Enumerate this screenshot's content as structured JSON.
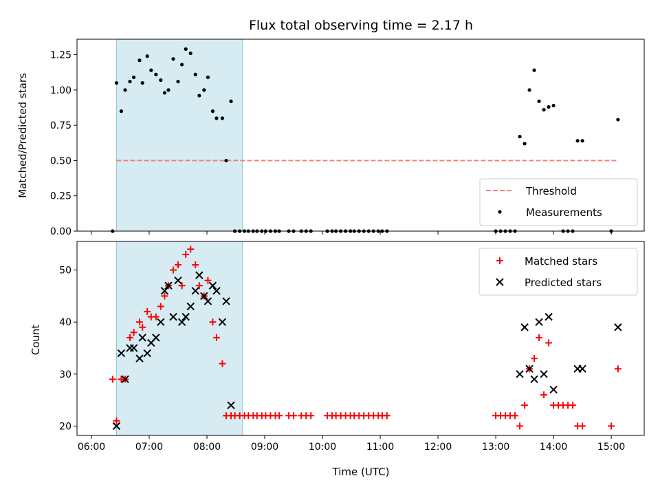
{
  "chart_data": {
    "title": "Flux total observing time = 2.17 h",
    "xlabel": "Time (UTC)",
    "x_ticks": [
      "06:00",
      "07:00",
      "08:00",
      "09:00",
      "10:00",
      "11:00",
      "12:00",
      "13:00",
      "14:00",
      "15:00"
    ],
    "shaded_span": {
      "start": "06:26",
      "end": "08:37"
    },
    "panels": [
      {
        "type": "scatter",
        "ylabel": "Matched/Predicted stars",
        "ylim": [
          0,
          1.36
        ],
        "y_ticks": [
          "0.00",
          "0.25",
          "0.50",
          "0.75",
          "1.00",
          "1.25"
        ],
        "legend": {
          "placement": "lower-right",
          "entries": [
            "Threshold",
            "Measurements"
          ]
        },
        "threshold": {
          "name": "Threshold",
          "y": 0.5,
          "x_start": "06:26",
          "x_end": "15:07",
          "color": "#f08080"
        },
        "measurements": {
          "name": "Measurements",
          "color": "#000000",
          "points": [
            [
              "06:22",
              0
            ],
            [
              "06:26",
              1.05
            ],
            [
              "06:31",
              0.85
            ],
            [
              "06:35",
              1.0
            ],
            [
              "06:40",
              1.06
            ],
            [
              "06:44",
              1.09
            ],
            [
              "06:50",
              1.21
            ],
            [
              "06:53",
              1.05
            ],
            [
              "06:58",
              1.24
            ],
            [
              "07:02",
              1.14
            ],
            [
              "07:07",
              1.11
            ],
            [
              "07:12",
              1.07
            ],
            [
              "07:16",
              0.98
            ],
            [
              "07:20",
              1.0
            ],
            [
              "07:25",
              1.22
            ],
            [
              "07:30",
              1.06
            ],
            [
              "07:34",
              1.18
            ],
            [
              "07:38",
              1.29
            ],
            [
              "07:43",
              1.26
            ],
            [
              "07:48",
              1.11
            ],
            [
              "07:52",
              0.96
            ],
            [
              "07:57",
              1.0
            ],
            [
              "08:01",
              1.09
            ],
            [
              "08:06",
              0.85
            ],
            [
              "08:10",
              0.8
            ],
            [
              "08:16",
              0.8
            ],
            [
              "08:20",
              0.5
            ],
            [
              "08:25",
              0.92
            ],
            [
              "08:29",
              0
            ],
            [
              "08:34",
              0
            ],
            [
              "08:39",
              0
            ],
            [
              "08:43",
              0
            ],
            [
              "08:48",
              0
            ],
            [
              "08:52",
              0
            ],
            [
              "08:57",
              0
            ],
            [
              "09:01",
              0
            ],
            [
              "09:06",
              0
            ],
            [
              "09:11",
              0
            ],
            [
              "09:15",
              0
            ],
            [
              "09:25",
              0
            ],
            [
              "09:30",
              0
            ],
            [
              "09:38",
              0
            ],
            [
              "09:43",
              0
            ],
            [
              "09:48",
              0
            ],
            [
              "10:05",
              0
            ],
            [
              "10:10",
              0
            ],
            [
              "10:14",
              0
            ],
            [
              "10:19",
              0
            ],
            [
              "10:24",
              0
            ],
            [
              "10:29",
              0
            ],
            [
              "10:33",
              0
            ],
            [
              "10:38",
              0
            ],
            [
              "10:43",
              0
            ],
            [
              "10:48",
              0
            ],
            [
              "10:53",
              0
            ],
            [
              "10:58",
              0
            ],
            [
              "11:02",
              0
            ],
            [
              "11:07",
              0
            ],
            [
              "13:00",
              0
            ],
            [
              "13:05",
              0
            ],
            [
              "13:10",
              0
            ],
            [
              "13:15",
              0
            ],
            [
              "13:20",
              0
            ],
            [
              "13:25",
              0.67
            ],
            [
              "13:30",
              0.62
            ],
            [
              "13:35",
              1.0
            ],
            [
              "13:40",
              1.14
            ],
            [
              "13:45",
              0.92
            ],
            [
              "13:50",
              0.86
            ],
            [
              "13:55",
              0.88
            ],
            [
              "14:00",
              0.89
            ],
            [
              "14:10",
              0
            ],
            [
              "14:15",
              0
            ],
            [
              "14:20",
              0
            ],
            [
              "14:25",
              0.64
            ],
            [
              "14:30",
              0.64
            ],
            [
              "15:00",
              0
            ],
            [
              "15:07",
              0.79
            ]
          ]
        }
      },
      {
        "type": "scatter",
        "ylabel": "Count",
        "ylim": [
          18.2,
          55.5
        ],
        "y_ticks": [
          "20",
          "30",
          "40",
          "50"
        ],
        "legend": {
          "placement": "upper-right",
          "entries": [
            "Matched stars",
            "Predicted stars"
          ]
        },
        "series": [
          {
            "name": "Matched stars",
            "marker": "plus",
            "color": "#ff0000",
            "points": [
              [
                "06:22",
                29
              ],
              [
                "06:26",
                21
              ],
              [
                "06:31",
                29
              ],
              [
                "06:35",
                29
              ],
              [
                "06:40",
                37
              ],
              [
                "06:44",
                38
              ],
              [
                "06:50",
                40
              ],
              [
                "06:53",
                39
              ],
              [
                "06:58",
                42
              ],
              [
                "07:02",
                41
              ],
              [
                "07:07",
                41
              ],
              [
                "07:12",
                43
              ],
              [
                "07:16",
                45
              ],
              [
                "07:20",
                47
              ],
              [
                "07:25",
                50
              ],
              [
                "07:30",
                51
              ],
              [
                "07:34",
                47
              ],
              [
                "07:38",
                53
              ],
              [
                "07:43",
                54
              ],
              [
                "07:48",
                51
              ],
              [
                "07:52",
                47
              ],
              [
                "07:57",
                45
              ],
              [
                "08:01",
                48
              ],
              [
                "08:06",
                40
              ],
              [
                "08:10",
                37
              ],
              [
                "08:16",
                32
              ],
              [
                "08:20",
                22
              ],
              [
                "08:25",
                22
              ],
              [
                "08:29",
                22
              ],
              [
                "08:34",
                22
              ],
              [
                "08:39",
                22
              ],
              [
                "08:43",
                22
              ],
              [
                "08:48",
                22
              ],
              [
                "08:52",
                22
              ],
              [
                "08:57",
                22
              ],
              [
                "09:01",
                22
              ],
              [
                "09:06",
                22
              ],
              [
                "09:11",
                22
              ],
              [
                "09:15",
                22
              ],
              [
                "09:25",
                22
              ],
              [
                "09:30",
                22
              ],
              [
                "09:38",
                22
              ],
              [
                "09:43",
                22
              ],
              [
                "09:48",
                22
              ],
              [
                "10:05",
                22
              ],
              [
                "10:10",
                22
              ],
              [
                "10:14",
                22
              ],
              [
                "10:19",
                22
              ],
              [
                "10:24",
                22
              ],
              [
                "10:29",
                22
              ],
              [
                "10:33",
                22
              ],
              [
                "10:38",
                22
              ],
              [
                "10:43",
                22
              ],
              [
                "10:48",
                22
              ],
              [
                "10:53",
                22
              ],
              [
                "10:58",
                22
              ],
              [
                "11:02",
                22
              ],
              [
                "11:07",
                22
              ],
              [
                "13:00",
                22
              ],
              [
                "13:05",
                22
              ],
              [
                "13:10",
                22
              ],
              [
                "13:15",
                22
              ],
              [
                "13:20",
                22
              ],
              [
                "13:25",
                20
              ],
              [
                "13:30",
                24
              ],
              [
                "13:35",
                31
              ],
              [
                "13:40",
                33
              ],
              [
                "13:45",
                37
              ],
              [
                "13:50",
                26
              ],
              [
                "13:55",
                36
              ],
              [
                "14:00",
                24
              ],
              [
                "14:05",
                24
              ],
              [
                "14:10",
                24
              ],
              [
                "14:15",
                24
              ],
              [
                "14:20",
                24
              ],
              [
                "14:25",
                20
              ],
              [
                "14:30",
                20
              ],
              [
                "15:00",
                20
              ],
              [
                "15:07",
                31
              ]
            ]
          },
          {
            "name": "Predicted stars",
            "marker": "x",
            "color": "#000000",
            "points": [
              [
                "06:26",
                20
              ],
              [
                "06:31",
                34
              ],
              [
                "06:35",
                29
              ],
              [
                "06:40",
                35
              ],
              [
                "06:44",
                35
              ],
              [
                "06:50",
                33
              ],
              [
                "06:53",
                37
              ],
              [
                "06:58",
                34
              ],
              [
                "07:02",
                36
              ],
              [
                "07:07",
                37
              ],
              [
                "07:12",
                40
              ],
              [
                "07:16",
                46
              ],
              [
                "07:20",
                47
              ],
              [
                "07:25",
                41
              ],
              [
                "07:30",
                48
              ],
              [
                "07:34",
                40
              ],
              [
                "07:38",
                41
              ],
              [
                "07:43",
                43
              ],
              [
                "07:48",
                46
              ],
              [
                "07:52",
                49
              ],
              [
                "07:57",
                45
              ],
              [
                "08:01",
                44
              ],
              [
                "08:06",
                47
              ],
              [
                "08:10",
                46
              ],
              [
                "08:16",
                40
              ],
              [
                "08:20",
                44
              ],
              [
                "08:25",
                24
              ],
              [
                "13:25",
                30
              ],
              [
                "13:30",
                39
              ],
              [
                "13:35",
                31
              ],
              [
                "13:40",
                29
              ],
              [
                "13:45",
                40
              ],
              [
                "13:50",
                30
              ],
              [
                "13:55",
                41
              ],
              [
                "14:00",
                27
              ],
              [
                "14:25",
                31
              ],
              [
                "14:30",
                31
              ],
              [
                "15:07",
                39
              ]
            ]
          }
        ]
      }
    ]
  }
}
